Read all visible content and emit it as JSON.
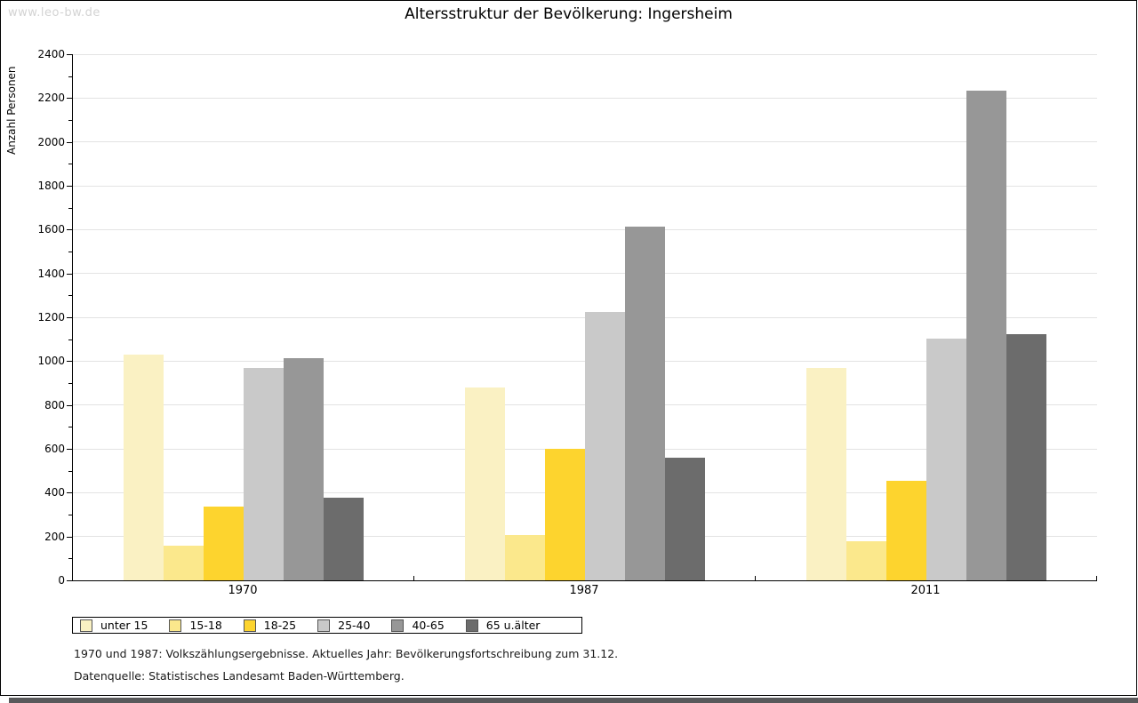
{
  "watermark": "www.leo-bw.de",
  "title": "Altersstruktur der Bevölkerung: Ingersheim",
  "chart_data": {
    "type": "bar",
    "title": "Altersstruktur der Bevölkerung: Ingersheim",
    "xlabel": "",
    "ylabel": "Anzahl Personen",
    "categories": [
      "1970",
      "1987",
      "2011"
    ],
    "series": [
      {
        "name": "unter 15",
        "color": "#FAF1C3",
        "values": [
          1030,
          878,
          969
        ]
      },
      {
        "name": "15-18",
        "color": "#FBE88C",
        "values": [
          160,
          208,
          178
        ]
      },
      {
        "name": "18-25",
        "color": "#FDD42E",
        "values": [
          335,
          599,
          453
        ]
      },
      {
        "name": "25-40",
        "color": "#C9C9C9",
        "values": [
          970,
          1224,
          1103
        ]
      },
      {
        "name": "40-65",
        "color": "#979797",
        "values": [
          1015,
          1614,
          2234
        ]
      },
      {
        "name": "65 u.älter",
        "color": "#6C6C6C",
        "values": [
          375,
          558,
          1123
        ]
      }
    ],
    "ylim": [
      0,
      2400
    ],
    "ytick_step": 200,
    "minor_tick_step": 100,
    "grid": true,
    "legend_position": "bottom",
    "colors": {
      "gridline": "#e3e3e3",
      "axis": "#000000",
      "background": "#ffffff",
      "bottom_strip": "#59595b",
      "watermark_text": "#d3d3d3"
    }
  },
  "footnotes": [
    "1970 und 1987: Volkszählungsergebnisse. Aktuelles Jahr: Bevölkerungsfortschreibung zum 31.12.",
    "Datenquelle: Statistisches Landesamt Baden-Württemberg."
  ]
}
